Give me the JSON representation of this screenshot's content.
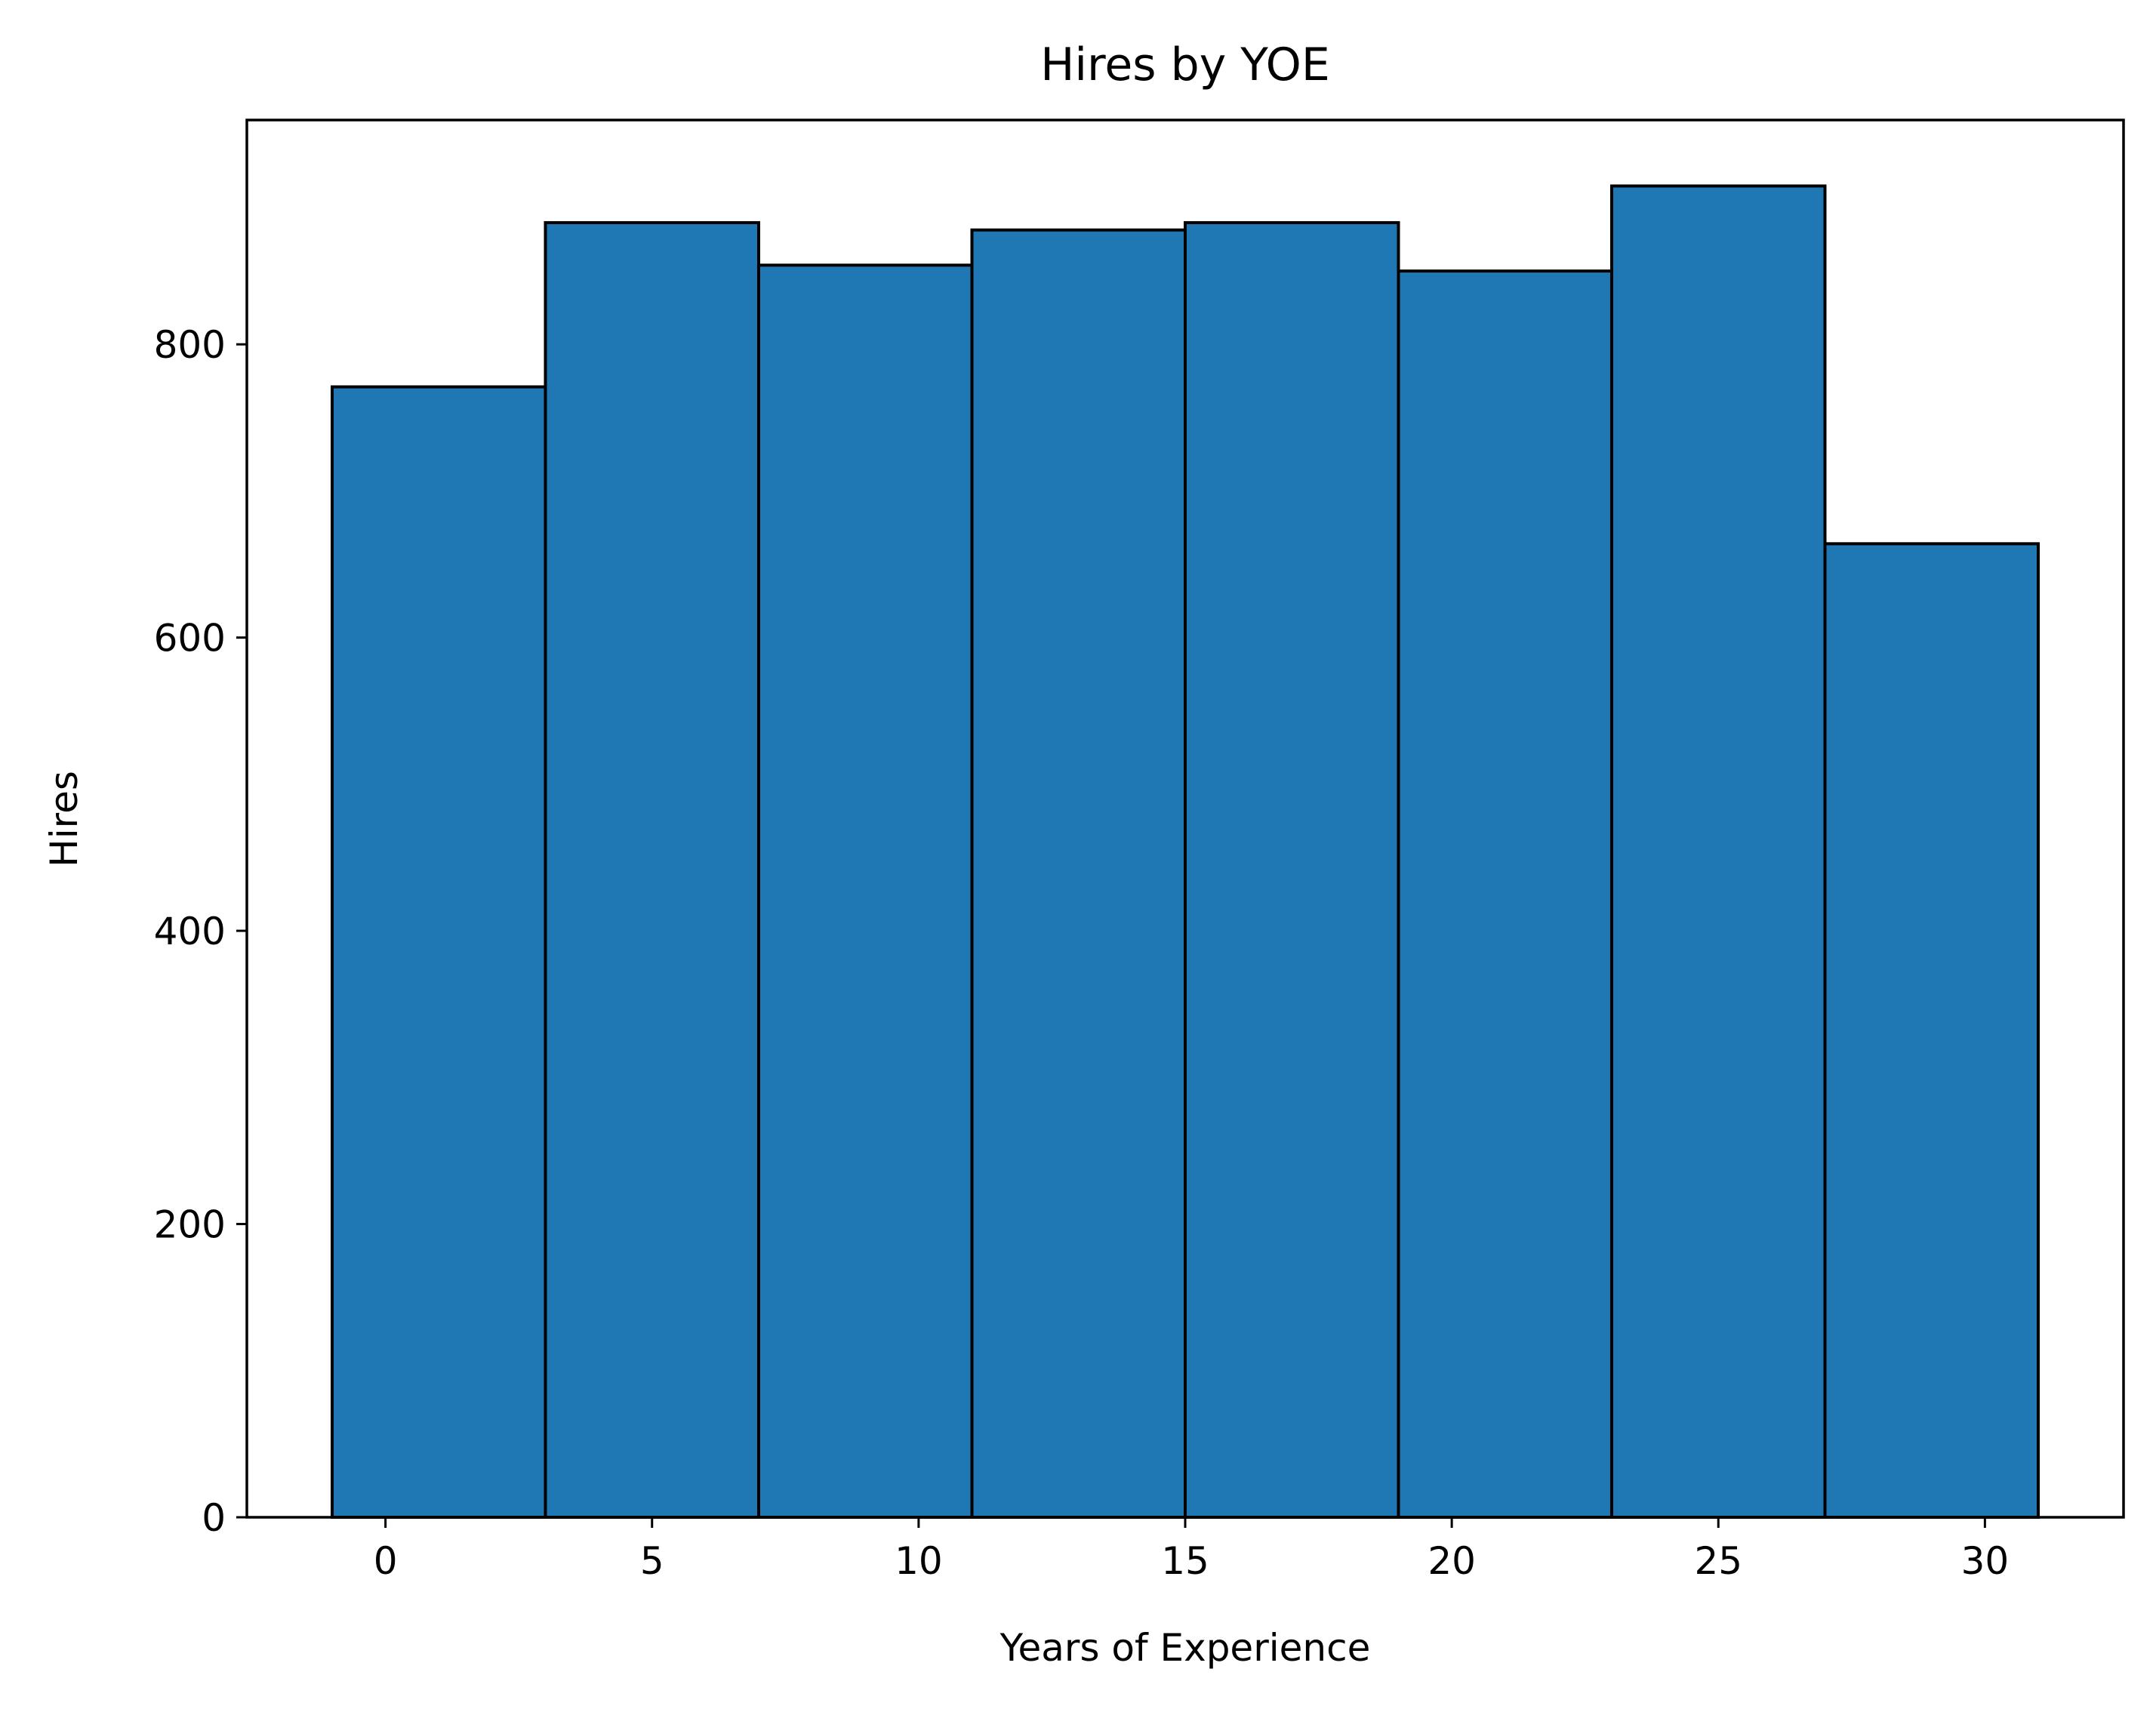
{
  "chart_data": {
    "type": "bar",
    "title": "Hires by YOE",
    "xlabel": "Years of Experience",
    "ylabel": "Hires",
    "bins": [
      {
        "start": -1,
        "end": 3,
        "value": 771
      },
      {
        "start": 3,
        "end": 7,
        "value": 883
      },
      {
        "start": 7,
        "end": 11,
        "value": 854
      },
      {
        "start": 11,
        "end": 15,
        "value": 878
      },
      {
        "start": 15,
        "end": 19,
        "value": 883
      },
      {
        "start": 19,
        "end": 23,
        "value": 850
      },
      {
        "start": 23,
        "end": 27,
        "value": 908
      },
      {
        "start": 27,
        "end": 31,
        "value": 664
      }
    ],
    "xlim": [
      -2.6,
      32.6
    ],
    "ylim": [
      0,
      953
    ],
    "xticks": [
      0,
      5,
      10,
      15,
      20,
      25,
      30
    ],
    "yticks": [
      0,
      200,
      400,
      600,
      800
    ],
    "grid": false,
    "colors": {
      "bar_fill": "#1f77b4",
      "bar_edge": "#000000",
      "axes": "#000000",
      "background": "#ffffff"
    }
  }
}
